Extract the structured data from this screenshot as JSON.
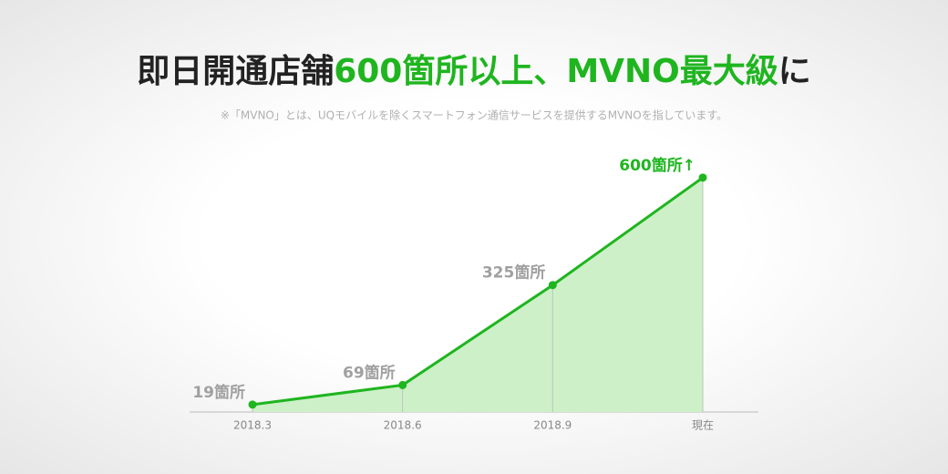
{
  "chart_data": {
    "type": "area",
    "title": [
      "即日開通店舗",
      "600箇所以上、MVNO最大級",
      "に"
    ],
    "title_color": "#222222",
    "title_highlight_color": "#1fb51f",
    "subtitle": "※「MVNO」とは、UQモバイルを除くスマートフォン通信サービスを提供するMVNOを指しています。",
    "categories": [
      "2018.3",
      "2018.6",
      "2018.9",
      "現在"
    ],
    "values": [
      19,
      69,
      325,
      600
    ],
    "value_labels": [
      "19箇所",
      "69箇所",
      "325箇所",
      "600箇所↑"
    ],
    "value_label_colors": [
      "#a0a0a0",
      "#a0a0a0",
      "#a0a0a0",
      "#1fb51f"
    ],
    "color": "#1fb51f",
    "fill": "#cdf0c8",
    "ylim": [
      0,
      700
    ]
  }
}
